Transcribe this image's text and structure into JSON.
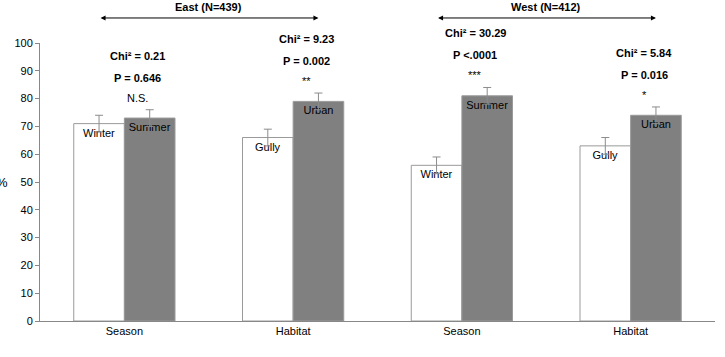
{
  "chart_data": {
    "type": "bar",
    "y_label": "%",
    "categories": [
      "Season",
      "Habitat",
      "Season",
      "Habitat"
    ],
    "series": [
      {
        "color": "#ffffff",
        "values": [
          71,
          66,
          56,
          63
        ],
        "errors": [
          3,
          3,
          3,
          3
        ],
        "labels": [
          "Winter",
          "Gully",
          "Winter",
          "Gully"
        ]
      },
      {
        "color": "#808080",
        "values": [
          73,
          79,
          81,
          74
        ],
        "errors": [
          3,
          3,
          3,
          3
        ],
        "labels": [
          "Summer",
          "Urban",
          "Summer",
          "Urban"
        ]
      }
    ],
    "ylim": [
      0,
      100
    ],
    "yticks": [
      0,
      10,
      20,
      30,
      40,
      50,
      60,
      70,
      80,
      90,
      100
    ],
    "grid": false,
    "groups": [
      {
        "label": "East (N=439)",
        "categories": [
          0,
          1
        ]
      },
      {
        "label": "West (N=412)",
        "categories": [
          2,
          3
        ]
      }
    ],
    "annotations": [
      {
        "category": 0,
        "chi": "Chi² = 0.21",
        "p": "P = 0.646",
        "significance": "N.S."
      },
      {
        "category": 1,
        "chi": "Chi² = 9.23",
        "p": "P = 0.002",
        "significance": "**"
      },
      {
        "category": 2,
        "chi": "Chi² = 30.29",
        "p": "P <.0001",
        "significance": "***"
      },
      {
        "category": 3,
        "chi": "Chi² = 5.84",
        "p": "P = 0.016",
        "significance": "*"
      }
    ]
  }
}
